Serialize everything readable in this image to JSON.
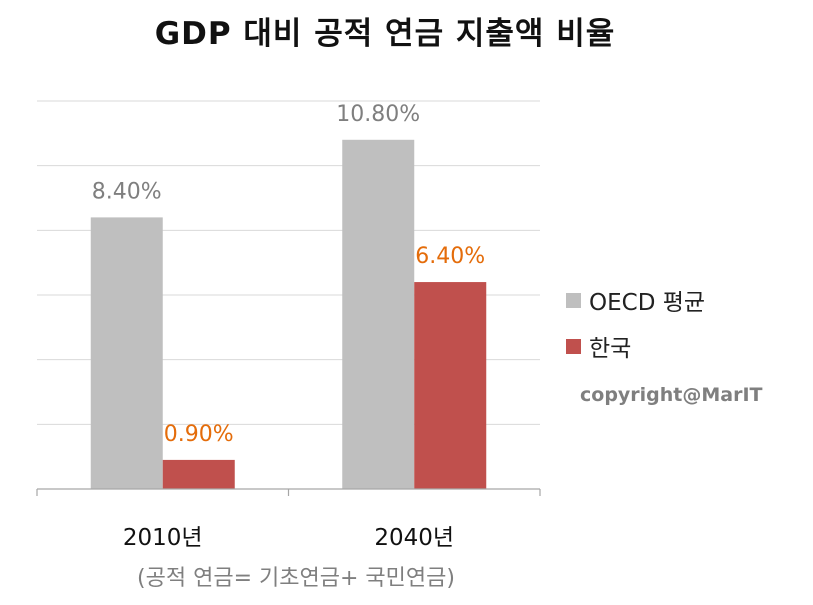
{
  "title": "GDP  대비 공적 연금 지출액 비율",
  "footnote": "(공적 연금= 기초연금+ 국민연금)",
  "copyright": "copyright@MarIT",
  "colors": {
    "oecd": "#bfbfbf",
    "korea": "#c0504d",
    "korea_label": "#e46c0a",
    "oecd_label": "#7f7f7f",
    "grid": "#d9d9d9"
  },
  "chart_data": {
    "type": "bar",
    "title": "GDP  대비 공적 연금 지출액 비율",
    "categories": [
      "2010년",
      "2040년"
    ],
    "series": [
      {
        "name": "OECD 평균",
        "values": [
          8.4,
          10.8
        ],
        "labels": [
          "8.40%",
          "10.80%"
        ]
      },
      {
        "name": "한국",
        "values": [
          0.9,
          6.4
        ],
        "labels": [
          "0.90%",
          "6.40%"
        ]
      }
    ],
    "ylim": [
      0,
      12
    ],
    "grid": true,
    "legend": "right",
    "xlabel": "",
    "ylabel": ""
  }
}
